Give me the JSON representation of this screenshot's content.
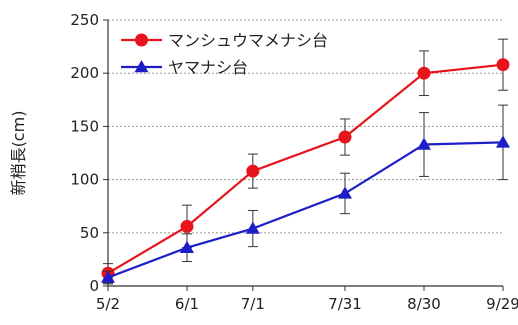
{
  "chart_data": {
    "type": "line",
    "ylabel": "新梢長(cm)",
    "ylim": [
      0,
      250
    ],
    "yticks": [
      "0",
      "50",
      "100",
      "150",
      "200",
      "250"
    ],
    "categories": [
      "5/2",
      "6/1",
      "7/1",
      "7/31",
      "8/30",
      "9/29"
    ],
    "x": [
      0,
      30,
      55,
      90,
      120,
      150
    ],
    "grid": "horizontal dotted",
    "legend_position": "top-left",
    "series": [
      {
        "name": "マンシュウマメナシ台",
        "color": "#e8141b",
        "marker": "circle",
        "values": [
          12,
          56,
          108,
          140,
          200,
          208
        ],
        "errors": [
          9,
          20,
          16,
          17,
          21,
          24
        ]
      },
      {
        "name": "ヤマナシ台",
        "color": "#1e1ec8",
        "marker": "triangle",
        "values": [
          8,
          36,
          54,
          87,
          133,
          135
        ],
        "errors": [
          6,
          13,
          17,
          19,
          30,
          35
        ]
      }
    ]
  }
}
